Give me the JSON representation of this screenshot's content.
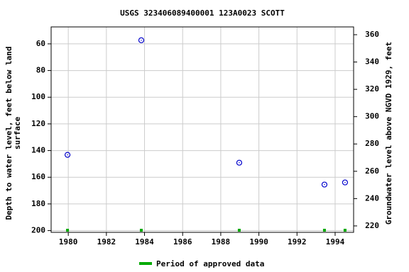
{
  "chart_data": {
    "type": "scatter",
    "title": "USGS 323406089400001 123A0023  SCOTT",
    "ylabel": [
      "Depth to water level, feet below land",
      "surface"
    ],
    "y2label": "Groundwater level above NGVD 1929, feet",
    "xlim": [
      1979.1,
      1994.97
    ],
    "xticks": [
      1980,
      1982,
      1984,
      1986,
      1988,
      1990,
      1992,
      1994
    ],
    "ylim": [
      47.3,
      201.3
    ],
    "yticks": [
      60,
      80,
      100,
      120,
      140,
      160,
      180,
      200
    ],
    "y_inverted": true,
    "y2lim": [
      215.3,
      365.7
    ],
    "y2ticks": [
      220,
      240,
      260,
      280,
      300,
      320,
      340,
      360
    ],
    "grid": true,
    "points": {
      "color": "#0000cc",
      "x": [
        1979.96,
        1983.83,
        1988.97,
        1993.44,
        1994.52
      ],
      "values": [
        143.2,
        57.3,
        149.1,
        165.5,
        163.9
      ]
    },
    "series": [
      {
        "name": "Period of approved data",
        "color": "#00aa00",
        "x": [
          1979.96,
          1983.83,
          1988.97,
          1993.44,
          1994.52
        ]
      }
    ]
  }
}
